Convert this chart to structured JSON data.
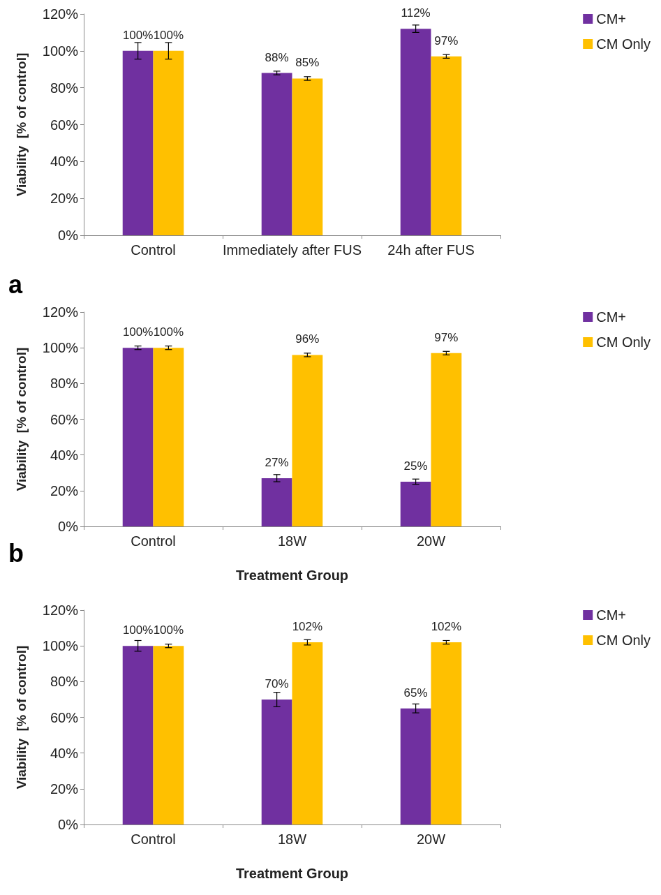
{
  "chart_data": [
    {
      "type": "bar",
      "ylabel": "Viability  [% of control]",
      "categories": [
        "Control",
        "Immediately after FUS",
        "24h after FUS"
      ],
      "series": [
        {
          "name": "CM+",
          "color": "#7030a0",
          "values": [
            100,
            88,
            112
          ],
          "errors": [
            4.5,
            1,
            2
          ],
          "value_labels": [
            "100%",
            "88%",
            "112%"
          ]
        },
        {
          "name": "CM Only",
          "color": "#ffc000",
          "values": [
            100,
            85,
            97
          ],
          "errors": [
            4.5,
            1,
            1
          ],
          "value_labels": [
            "100%",
            "85%",
            "97%"
          ]
        }
      ],
      "ylim": [
        0,
        120
      ],
      "yticks": [
        {
          "value": 0,
          "label": "0%"
        },
        {
          "value": 20,
          "label": "20%"
        },
        {
          "value": 40,
          "label": "40%"
        },
        {
          "value": 60,
          "label": "60%"
        },
        {
          "value": 80,
          "label": "80%"
        },
        {
          "value": 100,
          "label": "100%"
        },
        {
          "value": 120,
          "label": "120%"
        }
      ],
      "grid": false,
      "legend": "top right",
      "annotations": [
        "a"
      ]
    },
    {
      "type": "bar",
      "ylabel": "Viability  [% of control]",
      "xlabel": "Treatment Group",
      "categories": [
        "Control",
        "18W",
        "20W"
      ],
      "series": [
        {
          "name": "CM+",
          "color": "#7030a0",
          "values": [
            100,
            27,
            25
          ],
          "errors": [
            1,
            2,
            1.5
          ],
          "value_labels": [
            "100%",
            "27%",
            "25%"
          ]
        },
        {
          "name": "CM Only",
          "color": "#ffc000",
          "values": [
            100,
            96,
            97
          ],
          "errors": [
            1,
            1,
            1
          ],
          "value_labels": [
            "100%",
            "96%",
            "97%"
          ]
        }
      ],
      "ylim": [
        0,
        120
      ],
      "yticks": [
        {
          "value": 0,
          "label": "0%"
        },
        {
          "value": 20,
          "label": "20%"
        },
        {
          "value": 40,
          "label": "40%"
        },
        {
          "value": 60,
          "label": "60%"
        },
        {
          "value": 80,
          "label": "80%"
        },
        {
          "value": 100,
          "label": "100%"
        },
        {
          "value": 120,
          "label": "120%"
        }
      ],
      "grid": false,
      "legend": "top right",
      "annotations": [
        "b"
      ]
    },
    {
      "type": "bar",
      "ylabel": "Viability  [% of control]",
      "xlabel": "Treatment Group",
      "categories": [
        "Control",
        "18W",
        "20W"
      ],
      "series": [
        {
          "name": "CM+",
          "color": "#7030a0",
          "values": [
            100,
            70,
            65
          ],
          "errors": [
            3,
            4,
            2.5
          ],
          "value_labels": [
            "100%",
            "70%",
            "65%"
          ]
        },
        {
          "name": "CM Only",
          "color": "#ffc000",
          "values": [
            100,
            102,
            102
          ],
          "errors": [
            1,
            1.5,
            1
          ],
          "value_labels": [
            "100%",
            "102%",
            "102%"
          ]
        }
      ],
      "ylim": [
        0,
        120
      ],
      "yticks": [
        {
          "value": 0,
          "label": "0%"
        },
        {
          "value": 20,
          "label": "20%"
        },
        {
          "value": 40,
          "label": "40%"
        },
        {
          "value": 60,
          "label": "60%"
        },
        {
          "value": 80,
          "label": "80%"
        },
        {
          "value": 100,
          "label": "100%"
        },
        {
          "value": 120,
          "label": "120%"
        }
      ],
      "grid": false,
      "legend": "top right"
    }
  ]
}
